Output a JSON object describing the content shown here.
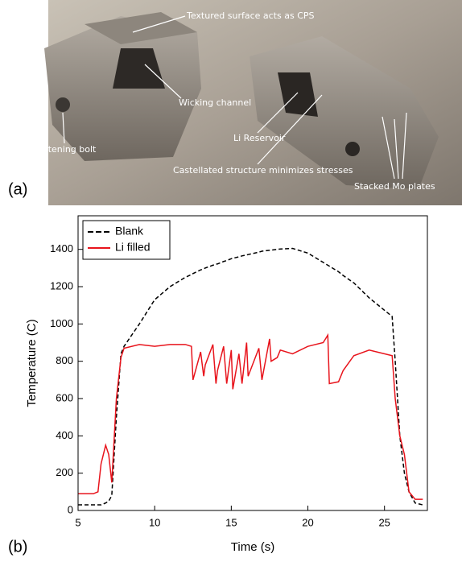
{
  "photo": {
    "label": "(a)",
    "annotations": [
      "Textured surface acts as CPS",
      "Wicking channel",
      "Li Reservoir",
      "Steel fastening bolt",
      "Castellated structure minimizes stresses",
      "Stacked Mo plates"
    ]
  },
  "chart_label": "(b)",
  "chart_data": {
    "type": "line",
    "x_label": "Time (s)",
    "y_label": "Temperature (C)",
    "x": [
      5,
      6,
      6.3,
      6.5,
      6.8,
      7.0,
      7.2,
      7.5,
      7.8,
      8,
      9,
      10,
      11,
      12,
      12.4,
      12.5,
      13,
      13.2,
      13.3,
      13.8,
      14,
      14.1,
      14.5,
      14.7,
      15,
      15.1,
      15.5,
      15.7,
      16,
      16.1,
      16.8,
      17,
      17.5,
      17.6,
      18,
      18.2,
      19,
      20,
      21,
      21.3,
      21.4,
      22,
      22.3,
      23,
      24,
      25.5,
      25.7,
      26,
      26.3,
      26.6,
      27,
      27.5
    ],
    "series": [
      {
        "name": "Blank",
        "color": "#000000",
        "line_style": "dashed",
        "values": [
          30,
          30,
          30,
          30,
          40,
          50,
          80,
          500,
          840,
          880,
          1000,
          1130,
          1200,
          1250,
          1265,
          1270,
          1290,
          1295,
          1300,
          1315,
          1320,
          1322,
          1335,
          1340,
          1350,
          1352,
          1360,
          1365,
          1370,
          1372,
          1385,
          1390,
          1395,
          1396,
          1400,
          1402,
          1405,
          1380,
          1330,
          1315,
          1310,
          1280,
          1260,
          1220,
          1140,
          1040,
          800,
          400,
          200,
          100,
          40,
          30
        ]
      },
      {
        "name": "Li filled",
        "color": "#e8141c",
        "line_style": "solid",
        "values": [
          90,
          90,
          100,
          250,
          350,
          300,
          150,
          600,
          820,
          870,
          890,
          880,
          890,
          890,
          880,
          700,
          850,
          720,
          780,
          890,
          680,
          750,
          880,
          680,
          860,
          650,
          840,
          680,
          900,
          720,
          870,
          700,
          920,
          800,
          820,
          860,
          840,
          880,
          900,
          940,
          680,
          690,
          750,
          830,
          860,
          830,
          600,
          400,
          300,
          100,
          60,
          60
        ]
      }
    ],
    "xlim": [
      5,
      27.8
    ],
    "xticks": [
      5,
      10,
      15,
      20,
      25
    ],
    "ylim": [
      0,
      1580
    ],
    "yticks": [
      0,
      200,
      400,
      600,
      800,
      1000,
      1200,
      1400
    ],
    "legend": "upper-left"
  }
}
